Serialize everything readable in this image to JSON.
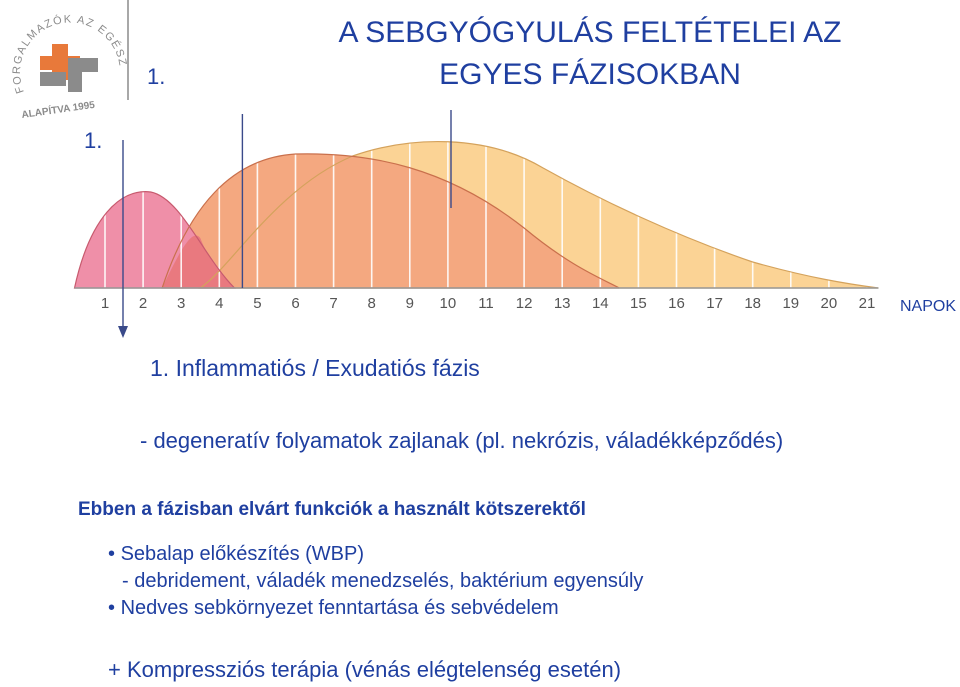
{
  "logo": {
    "ring_text": "FORGALMAZÓK AZ EGÉSZSÉGÉRT",
    "bottom_text": "ALAPÍTVA 1995",
    "colors": {
      "orange": "#e8793a",
      "gray": "#8b8b8b"
    }
  },
  "slide": {
    "number_top": "1.",
    "number_side": "1.",
    "title_line1": "A SEBGYÓGYULÁS FELTÉTELEI AZ",
    "title_line2": "EGYES FÁZISOKBAN"
  },
  "chart_data": {
    "type": "area",
    "x_unit_label": "NAPOK",
    "x_ticks": [
      "1",
      "2",
      "3",
      "4",
      "5",
      "6",
      "7",
      "8",
      "9",
      "10",
      "11",
      "12",
      "13",
      "14",
      "15",
      "16",
      "17",
      "18",
      "19",
      "20",
      "21"
    ],
    "xlim": [
      1,
      21
    ],
    "series": [
      {
        "color": "#ef8fa8",
        "peak_day": 2.2,
        "range": [
          1,
          4.5
        ]
      },
      {
        "color": "#f4a880",
        "peak_day": 6.0,
        "range": [
          2.5,
          14.5
        ]
      },
      {
        "color": "#fbd395",
        "peak_day": 10.5,
        "range": [
          4.2,
          21
        ]
      }
    ],
    "markers": [
      "down-arrow at day 1",
      "line at day 5",
      "line at day 11"
    ]
  },
  "content": {
    "phase_title": "1. Inflammatiós / Exudatiós   fázis",
    "phase_sub": "- degeneratív folyamatok zajlanak (pl. nekrózis, váladékképződés)",
    "heading": "Ebben a fázisban elvárt funkciók a használt kötszerektől",
    "bullets": [
      "Sebalap előkészítés (WBP)",
      "- debridement, váladék menedzselés, baktérium egyensúly",
      "Nedves sebkörnyezet fenntartása és sebvédelem"
    ],
    "extra": "+ Kompressziós terápia (vénás elégtelenség esetén)"
  }
}
